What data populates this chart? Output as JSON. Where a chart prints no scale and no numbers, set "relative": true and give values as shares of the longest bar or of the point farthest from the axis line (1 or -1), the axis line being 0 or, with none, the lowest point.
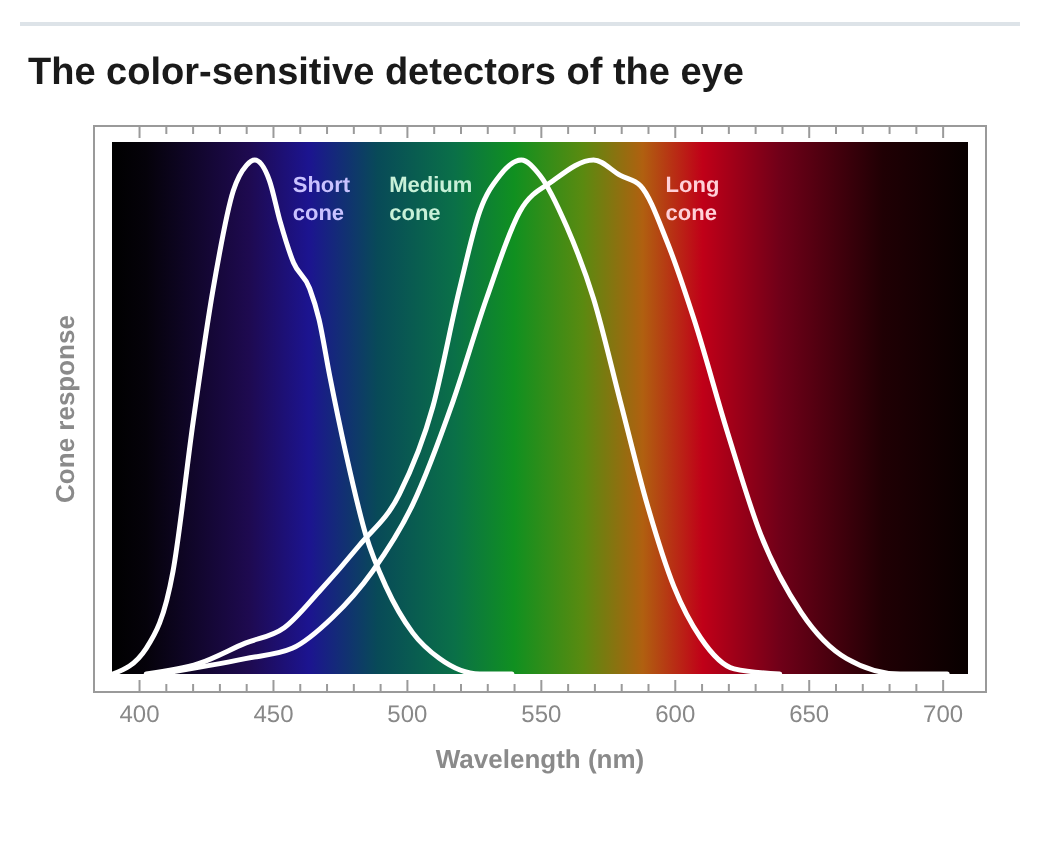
{
  "chart_data": {
    "type": "line",
    "title": "The color-sensitive detectors of the eye",
    "xlabel": "Wavelength (nm)",
    "ylabel": "Cone response",
    "relative": true,
    "grid": false,
    "legend": false,
    "marker": "none",
    "line_style": "solid",
    "xlim": [
      383,
      716
    ],
    "xticks": [
      400,
      {
        "value": 410,
        "label": null
      },
      {
        "value": 420,
        "label": null
      },
      {
        "value": 430,
        "label": null
      },
      {
        "value": 440,
        "label": null
      },
      450,
      {
        "value": 460,
        "label": null
      },
      {
        "value": 470,
        "label": null
      },
      {
        "value": 480,
        "label": null
      },
      {
        "value": 490,
        "label": null
      },
      500,
      {
        "value": 510,
        "label": null
      },
      {
        "value": 520,
        "label": null
      },
      {
        "value": 530,
        "label": null
      },
      {
        "value": 540,
        "label": null
      },
      550,
      {
        "value": 560,
        "label": null
      },
      {
        "value": 570,
        "label": null
      },
      {
        "value": 580,
        "label": null
      },
      {
        "value": 590,
        "label": null
      },
      600,
      {
        "value": 610,
        "label": null
      },
      {
        "value": 620,
        "label": null
      },
      {
        "value": 630,
        "label": null
      },
      {
        "value": 640,
        "label": null
      },
      650,
      {
        "value": 660,
        "label": null
      },
      {
        "value": 670,
        "label": null
      },
      {
        "value": 680,
        "label": null
      },
      {
        "value": 690,
        "label": null
      },
      700
    ],
    "series": [
      {
        "name": "Short cone",
        "color": "#ffffff",
        "x": [
          390,
          402.5,
          412.5,
          420,
          427.5,
          435,
          440,
          443,
          448.5,
          452.5,
          457.5,
          463.5,
          467,
          471,
          477,
          484.5,
          492,
          502,
          512,
          527,
          539
        ],
        "values": [
          0,
          0.05,
          0.2,
          0.49,
          0.75,
          0.94,
          0.99,
          1,
          0.96,
          0.88,
          0.8,
          0.75,
          0.69,
          0.58,
          0.43,
          0.27,
          0.17,
          0.08,
          0.03,
          0,
          0
        ]
      },
      {
        "name": "Medium cone",
        "color": "#ffffff",
        "x": [
          402.5,
          422,
          439.5,
          454,
          467,
          482,
          497,
          509.5,
          519.5,
          527,
          534.5,
          542.5,
          549.5,
          559.5,
          569.5,
          579.5,
          589.5,
          599.5,
          609.5,
          622,
          639
        ],
        "values": [
          0,
          0.02,
          0.06,
          0.09,
          0.16,
          0.25,
          0.35,
          0.52,
          0.75,
          0.9,
          0.97,
          1,
          0.97,
          0.87,
          0.73,
          0.53,
          0.33,
          0.17,
          0.07,
          0.01,
          0
        ]
      },
      {
        "name": "Long cone",
        "color": "#ffffff",
        "x": [
          407.5,
          439.5,
          457,
          472,
          487,
          502,
          517,
          529.5,
          542,
          554.5,
          569.5,
          579.5,
          587,
          597,
          607,
          619.5,
          632,
          647,
          664,
          684,
          701.5
        ],
        "values": [
          0,
          0.03,
          0.05,
          0.11,
          0.2,
          0.33,
          0.53,
          0.73,
          0.9,
          0.96,
          1,
          0.97,
          0.95,
          0.84,
          0.69,
          0.47,
          0.27,
          0.12,
          0.03,
          0,
          0
        ]
      }
    ]
  }
}
